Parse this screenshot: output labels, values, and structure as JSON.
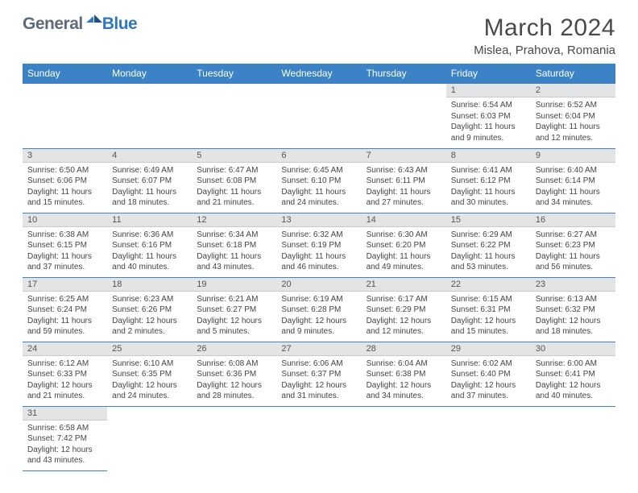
{
  "brand": {
    "part1": "General",
    "part2": "Blue"
  },
  "title": "March 2024",
  "location": "Mislea, Prahova, Romania",
  "colors": {
    "header_bg": "#3b82c7",
    "header_text": "#ffffff",
    "daynum_bg": "#e3e4e6",
    "rule": "#3b82c7",
    "brand_gray": "#5f6b78",
    "brand_blue": "#2f78c4"
  },
  "weekdays": [
    "Sunday",
    "Monday",
    "Tuesday",
    "Wednesday",
    "Thursday",
    "Friday",
    "Saturday"
  ],
  "labels": {
    "sunrise": "Sunrise: ",
    "sunset": "Sunset: ",
    "daylight": "Daylight: "
  },
  "startOffset": 5,
  "days": [
    {
      "n": 1,
      "sr": "6:54 AM",
      "ss": "6:03 PM",
      "dl": "11 hours and 9 minutes."
    },
    {
      "n": 2,
      "sr": "6:52 AM",
      "ss": "6:04 PM",
      "dl": "11 hours and 12 minutes."
    },
    {
      "n": 3,
      "sr": "6:50 AM",
      "ss": "6:06 PM",
      "dl": "11 hours and 15 minutes."
    },
    {
      "n": 4,
      "sr": "6:49 AM",
      "ss": "6:07 PM",
      "dl": "11 hours and 18 minutes."
    },
    {
      "n": 5,
      "sr": "6:47 AM",
      "ss": "6:08 PM",
      "dl": "11 hours and 21 minutes."
    },
    {
      "n": 6,
      "sr": "6:45 AM",
      "ss": "6:10 PM",
      "dl": "11 hours and 24 minutes."
    },
    {
      "n": 7,
      "sr": "6:43 AM",
      "ss": "6:11 PM",
      "dl": "11 hours and 27 minutes."
    },
    {
      "n": 8,
      "sr": "6:41 AM",
      "ss": "6:12 PM",
      "dl": "11 hours and 30 minutes."
    },
    {
      "n": 9,
      "sr": "6:40 AM",
      "ss": "6:14 PM",
      "dl": "11 hours and 34 minutes."
    },
    {
      "n": 10,
      "sr": "6:38 AM",
      "ss": "6:15 PM",
      "dl": "11 hours and 37 minutes."
    },
    {
      "n": 11,
      "sr": "6:36 AM",
      "ss": "6:16 PM",
      "dl": "11 hours and 40 minutes."
    },
    {
      "n": 12,
      "sr": "6:34 AM",
      "ss": "6:18 PM",
      "dl": "11 hours and 43 minutes."
    },
    {
      "n": 13,
      "sr": "6:32 AM",
      "ss": "6:19 PM",
      "dl": "11 hours and 46 minutes."
    },
    {
      "n": 14,
      "sr": "6:30 AM",
      "ss": "6:20 PM",
      "dl": "11 hours and 49 minutes."
    },
    {
      "n": 15,
      "sr": "6:29 AM",
      "ss": "6:22 PM",
      "dl": "11 hours and 53 minutes."
    },
    {
      "n": 16,
      "sr": "6:27 AM",
      "ss": "6:23 PM",
      "dl": "11 hours and 56 minutes."
    },
    {
      "n": 17,
      "sr": "6:25 AM",
      "ss": "6:24 PM",
      "dl": "11 hours and 59 minutes."
    },
    {
      "n": 18,
      "sr": "6:23 AM",
      "ss": "6:26 PM",
      "dl": "12 hours and 2 minutes."
    },
    {
      "n": 19,
      "sr": "6:21 AM",
      "ss": "6:27 PM",
      "dl": "12 hours and 5 minutes."
    },
    {
      "n": 20,
      "sr": "6:19 AM",
      "ss": "6:28 PM",
      "dl": "12 hours and 9 minutes."
    },
    {
      "n": 21,
      "sr": "6:17 AM",
      "ss": "6:29 PM",
      "dl": "12 hours and 12 minutes."
    },
    {
      "n": 22,
      "sr": "6:15 AM",
      "ss": "6:31 PM",
      "dl": "12 hours and 15 minutes."
    },
    {
      "n": 23,
      "sr": "6:13 AM",
      "ss": "6:32 PM",
      "dl": "12 hours and 18 minutes."
    },
    {
      "n": 24,
      "sr": "6:12 AM",
      "ss": "6:33 PM",
      "dl": "12 hours and 21 minutes."
    },
    {
      "n": 25,
      "sr": "6:10 AM",
      "ss": "6:35 PM",
      "dl": "12 hours and 24 minutes."
    },
    {
      "n": 26,
      "sr": "6:08 AM",
      "ss": "6:36 PM",
      "dl": "12 hours and 28 minutes."
    },
    {
      "n": 27,
      "sr": "6:06 AM",
      "ss": "6:37 PM",
      "dl": "12 hours and 31 minutes."
    },
    {
      "n": 28,
      "sr": "6:04 AM",
      "ss": "6:38 PM",
      "dl": "12 hours and 34 minutes."
    },
    {
      "n": 29,
      "sr": "6:02 AM",
      "ss": "6:40 PM",
      "dl": "12 hours and 37 minutes."
    },
    {
      "n": 30,
      "sr": "6:00 AM",
      "ss": "6:41 PM",
      "dl": "12 hours and 40 minutes."
    },
    {
      "n": 31,
      "sr": "6:58 AM",
      "ss": "7:42 PM",
      "dl": "12 hours and 43 minutes."
    }
  ]
}
